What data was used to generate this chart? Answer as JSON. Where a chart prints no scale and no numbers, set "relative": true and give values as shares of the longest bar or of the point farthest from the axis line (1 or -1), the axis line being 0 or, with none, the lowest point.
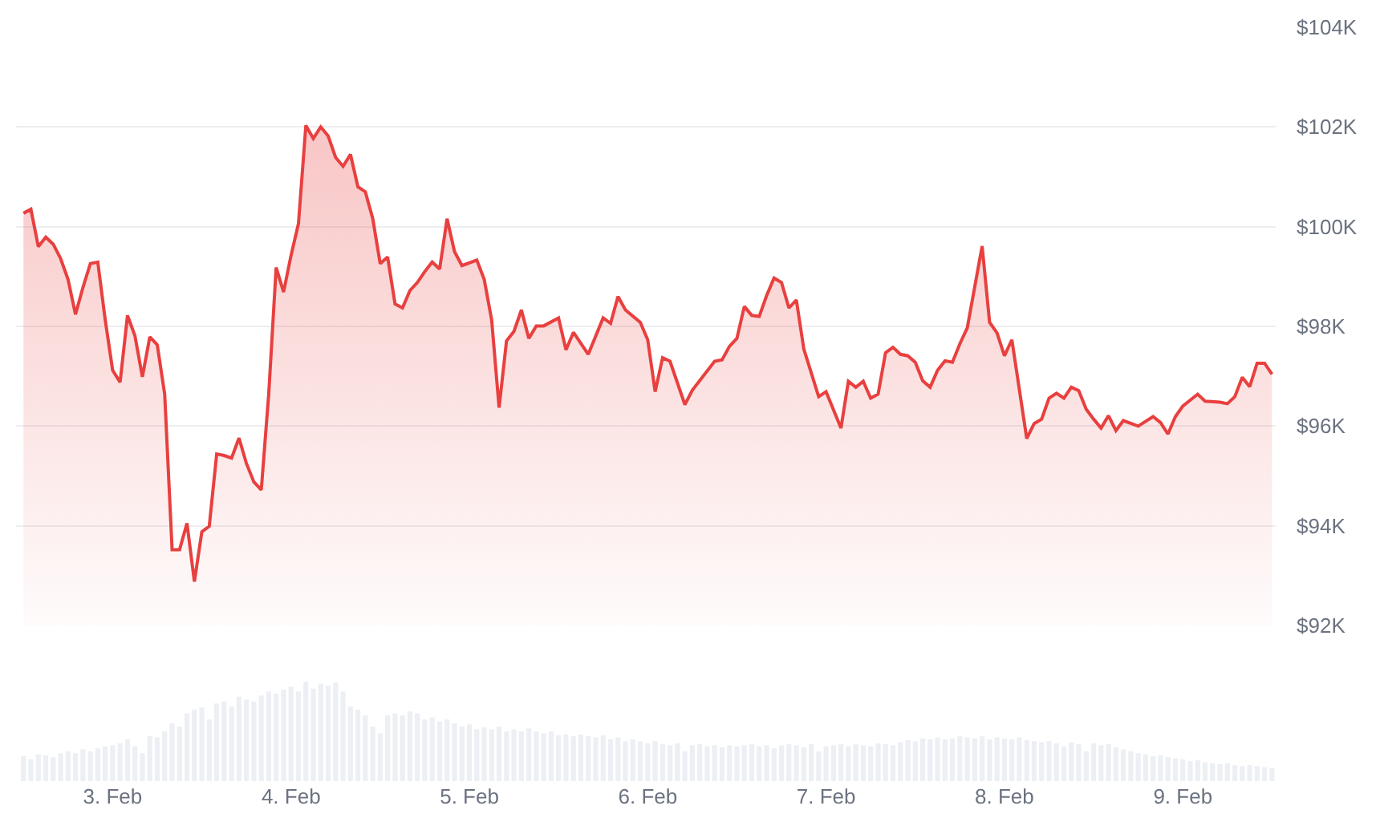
{
  "chart_data": [
    {
      "type": "area",
      "tick_labels": "y",
      "grid": "y",
      "marker": "none",
      "line_style": "solid",
      "xlim": [
        "--02-02T11:00",
        "--02-09T12:30"
      ],
      "ylim": [
        92,
        104
      ],
      "yticks": [
        {
          "value": 92,
          "label": "$92K"
        },
        {
          "value": 94,
          "label": "$94K"
        },
        {
          "value": 96,
          "label": "$96K"
        },
        {
          "value": 98,
          "label": "$98K"
        },
        {
          "value": 100,
          "label": "$100K"
        },
        {
          "value": 102,
          "label": "$102K"
        },
        {
          "value": 104,
          "label": "$104K"
        }
      ],
      "series": [
        {
          "color": "#e8403f",
          "x": [
            "--02-02T12:00",
            "--02-02T13:00",
            "--02-02T14:00",
            "--02-02T15:00",
            "--02-02T16:00",
            "--02-02T17:00",
            "--02-02T18:00",
            "--02-02T19:00",
            "--02-02T20:00",
            "--02-02T21:00",
            "--02-02T22:00",
            "--02-02T23:00",
            "--02-03T00:00",
            "--02-03T01:00",
            "--02-03T02:00",
            "--02-03T03:00",
            "--02-03T04:00",
            "--02-03T05:00",
            "--02-03T06:00",
            "--02-03T07:00",
            "--02-03T08:00",
            "--02-03T09:00",
            "--02-03T10:00",
            "--02-03T11:00",
            "--02-03T12:00",
            "--02-03T13:00",
            "--02-03T14:00",
            "--02-03T15:00",
            "--02-03T16:00",
            "--02-03T17:00",
            "--02-03T18:00",
            "--02-03T19:00",
            "--02-03T20:00",
            "--02-03T21:00",
            "--02-03T22:00",
            "--02-03T23:00",
            "--02-04T00:00",
            "--02-04T01:00",
            "--02-04T02:00",
            "--02-04T03:00",
            "--02-04T04:00",
            "--02-04T05:00",
            "--02-04T06:00",
            "--02-04T07:00",
            "--02-04T08:00",
            "--02-04T09:00",
            "--02-04T10:00",
            "--02-04T11:00",
            "--02-04T12:00",
            "--02-04T13:00",
            "--02-04T14:00",
            "--02-04T15:00",
            "--02-04T16:00",
            "--02-04T17:00",
            "--02-04T18:00",
            "--02-04T19:00",
            "--02-04T20:00",
            "--02-04T21:00",
            "--02-04T22:00",
            "--02-04T23:00",
            "--02-05T01:00",
            "--02-05T02:00",
            "--02-05T03:00",
            "--02-05T04:00",
            "--02-05T05:00",
            "--02-05T06:00",
            "--02-05T07:00",
            "--02-05T08:00",
            "--02-05T09:00",
            "--02-05T10:00",
            "--02-05T12:00",
            "--02-05T13:00",
            "--02-05T14:00",
            "--02-05T16:00",
            "--02-05T18:00",
            "--02-05T19:00",
            "--02-05T20:00",
            "--02-05T21:00",
            "--02-05T23:00",
            "--02-06T00:00",
            "--02-06T01:00",
            "--02-06T02:00",
            "--02-06T03:00",
            "--02-06T05:00",
            "--02-06T06:00",
            "--02-06T09:00",
            "--02-06T10:00",
            "--02-06T11:00",
            "--02-06T12:00",
            "--02-06T13:00",
            "--02-06T14:00",
            "--02-06T15:00",
            "--02-06T16:00",
            "--02-06T17:00",
            "--02-06T18:00",
            "--02-06T19:00",
            "--02-06T20:00",
            "--02-06T21:00",
            "--02-06T23:00",
            "--02-07T00:00",
            "--02-07T02:00",
            "--02-07T03:00",
            "--02-07T04:00",
            "--02-07T05:00",
            "--02-07T06:00",
            "--02-07T07:00",
            "--02-07T08:00",
            "--02-07T09:00",
            "--02-07T10:00",
            "--02-07T11:00",
            "--02-07T12:00",
            "--02-07T13:00",
            "--02-07T14:00",
            "--02-07T15:00",
            "--02-07T16:00",
            "--02-07T17:00",
            "--02-07T18:00",
            "--02-07T19:00",
            "--02-07T21:00",
            "--02-07T22:00",
            "--02-07T23:00",
            "--02-08T00:00",
            "--02-08T01:00",
            "--02-08T03:00",
            "--02-08T04:00",
            "--02-08T05:00",
            "--02-08T06:00",
            "--02-08T07:00",
            "--02-08T08:00",
            "--02-08T09:00",
            "--02-08T10:00",
            "--02-08T11:00",
            "--02-08T12:00",
            "--02-08T13:00",
            "--02-08T14:00",
            "--02-08T15:00",
            "--02-08T16:00",
            "--02-08T18:00",
            "--02-08T20:00",
            "--02-08T21:00",
            "--02-08T22:00",
            "--02-08T23:00",
            "--02-09T00:00",
            "--02-09T02:00",
            "--02-09T03:00",
            "--02-09T05:00",
            "--02-09T06:00",
            "--02-09T07:00",
            "--02-09T08:00",
            "--02-09T09:00",
            "--02-09T10:00",
            "--02-09T11:00",
            "--02-09T12:00"
          ],
          "values": [
            100.27,
            100.35,
            99.6,
            99.79,
            99.65,
            99.36,
            98.94,
            98.24,
            98.78,
            99.26,
            99.29,
            98.13,
            97.12,
            96.88,
            98.22,
            97.81,
            96.99,
            97.79,
            97.63,
            96.64,
            93.52,
            93.52,
            94.05,
            92.88,
            93.88,
            93.99,
            95.44,
            95.41,
            95.36,
            95.76,
            95.25,
            94.88,
            94.72,
            96.64,
            99.18,
            98.69,
            99.42,
            100.06,
            102.03,
            101.77,
            102.0,
            101.82,
            101.39,
            101.21,
            101.45,
            100.8,
            100.7,
            100.16,
            99.26,
            99.39,
            98.45,
            98.37,
            98.72,
            98.88,
            99.1,
            99.29,
            99.15,
            100.16,
            99.5,
            99.22,
            99.33,
            98.94,
            98.13,
            96.37,
            97.71,
            97.9,
            98.33,
            97.76,
            98.01,
            98.01,
            98.17,
            97.53,
            97.88,
            97.44,
            98.17,
            98.06,
            98.6,
            98.33,
            98.08,
            97.73,
            96.69,
            97.37,
            97.3,
            96.43,
            96.72,
            97.3,
            97.33,
            97.6,
            97.76,
            98.4,
            98.22,
            98.2,
            98.62,
            98.97,
            98.88,
            98.37,
            98.53,
            97.55,
            96.59,
            96.69,
            95.96,
            96.9,
            96.78,
            96.9,
            96.56,
            96.64,
            97.47,
            97.58,
            97.44,
            97.41,
            97.28,
            96.91,
            96.78,
            97.12,
            97.31,
            97.28,
            97.65,
            97.97,
            99.61,
            98.08,
            97.87,
            97.41,
            97.73,
            95.75,
            96.05,
            96.14,
            96.56,
            96.66,
            96.56,
            96.78,
            96.71,
            96.34,
            96.14,
            95.96,
            96.21,
            95.91,
            96.11,
            96.0,
            96.19,
            96.07,
            95.84,
            96.19,
            96.4,
            96.64,
            96.5,
            96.48,
            96.45,
            96.59,
            96.98,
            96.79,
            97.26,
            97.26,
            97.04
          ]
        }
      ]
    },
    {
      "type": "bar",
      "relative": true,
      "tick_labels": "x",
      "grid": false,
      "xlim": [
        "--02-02T11:00",
        "--02-09T12:30"
      ],
      "xticks": [
        {
          "value": "--02-03",
          "label": "3. Feb"
        },
        {
          "value": "--02-04",
          "label": "4. Feb"
        },
        {
          "value": "--02-05",
          "label": "5. Feb"
        },
        {
          "value": "--02-06",
          "label": "6. Feb"
        },
        {
          "value": "--02-07",
          "label": "7. Feb"
        },
        {
          "value": "--02-08",
          "label": "8. Feb"
        },
        {
          "value": "--02-09",
          "label": "9. Feb"
        }
      ],
      "series": [
        {
          "color": "#eceff3",
          "x": [
            "--02-02T12:00",
            "--02-02T13:00",
            "--02-02T14:00",
            "--02-02T15:00",
            "--02-02T16:00",
            "--02-02T17:00",
            "--02-02T18:00",
            "--02-02T19:00",
            "--02-02T20:00",
            "--02-02T21:00",
            "--02-02T22:00",
            "--02-02T23:00",
            "--02-03T00:00",
            "--02-03T01:00",
            "--02-03T02:00",
            "--02-03T03:00",
            "--02-03T04:00",
            "--02-03T05:00",
            "--02-03T06:00",
            "--02-03T07:00",
            "--02-03T08:00",
            "--02-03T09:00",
            "--02-03T10:00",
            "--02-03T11:00",
            "--02-03T12:00",
            "--02-03T13:00",
            "--02-03T14:00",
            "--02-03T15:00",
            "--02-03T16:00",
            "--02-03T17:00",
            "--02-03T18:00",
            "--02-03T19:00",
            "--02-03T20:00",
            "--02-03T21:00",
            "--02-03T22:00",
            "--02-03T23:00",
            "--02-04T00:00",
            "--02-04T01:00",
            "--02-04T02:00",
            "--02-04T03:00",
            "--02-04T04:00",
            "--02-04T05:00",
            "--02-04T06:00",
            "--02-04T07:00",
            "--02-04T08:00",
            "--02-04T09:00",
            "--02-04T10:00",
            "--02-04T11:00",
            "--02-04T12:00",
            "--02-04T13:00",
            "--02-04T14:00",
            "--02-04T15:00",
            "--02-04T16:00",
            "--02-04T17:00",
            "--02-04T18:00",
            "--02-04T19:00",
            "--02-04T20:00",
            "--02-04T21:00",
            "--02-04T22:00",
            "--02-04T23:00",
            "--02-05T00:00",
            "--02-05T01:00",
            "--02-05T02:00",
            "--02-05T03:00",
            "--02-05T04:00",
            "--02-05T05:00",
            "--02-05T06:00",
            "--02-05T07:00",
            "--02-05T08:00",
            "--02-05T09:00",
            "--02-05T10:00",
            "--02-05T11:00",
            "--02-05T12:00",
            "--02-05T13:00",
            "--02-05T14:00",
            "--02-05T15:00",
            "--02-05T16:00",
            "--02-05T17:00",
            "--02-05T18:00",
            "--02-05T19:00",
            "--02-05T20:00",
            "--02-05T21:00",
            "--02-05T22:00",
            "--02-05T23:00",
            "--02-06T00:00",
            "--02-06T01:00",
            "--02-06T02:00",
            "--02-06T03:00",
            "--02-06T04:00",
            "--02-06T05:00",
            "--02-06T06:00",
            "--02-06T07:00",
            "--02-06T08:00",
            "--02-06T09:00",
            "--02-06T10:00",
            "--02-06T11:00",
            "--02-06T12:00",
            "--02-06T13:00",
            "--02-06T14:00",
            "--02-06T15:00",
            "--02-06T16:00",
            "--02-06T17:00",
            "--02-06T18:00",
            "--02-06T19:00",
            "--02-06T20:00",
            "--02-06T21:00",
            "--02-06T22:00",
            "--02-06T23:00",
            "--02-07T00:00",
            "--02-07T01:00",
            "--02-07T02:00",
            "--02-07T03:00",
            "--02-07T04:00",
            "--02-07T05:00",
            "--02-07T06:00",
            "--02-07T07:00",
            "--02-07T08:00",
            "--02-07T09:00",
            "--02-07T10:00",
            "--02-07T11:00",
            "--02-07T12:00",
            "--02-07T13:00",
            "--02-07T14:00",
            "--02-07T15:00",
            "--02-07T16:00",
            "--02-07T17:00",
            "--02-07T18:00",
            "--02-07T19:00",
            "--02-07T20:00",
            "--02-07T21:00",
            "--02-07T22:00",
            "--02-07T23:00",
            "--02-08T00:00",
            "--02-08T01:00",
            "--02-08T02:00",
            "--02-08T03:00",
            "--02-08T04:00",
            "--02-08T05:00",
            "--02-08T06:00",
            "--02-08T07:00",
            "--02-08T08:00",
            "--02-08T09:00",
            "--02-08T10:00",
            "--02-08T11:00",
            "--02-08T12:00",
            "--02-08T13:00",
            "--02-08T14:00",
            "--02-08T15:00",
            "--02-08T16:00",
            "--02-08T17:00",
            "--02-08T18:00",
            "--02-08T19:00",
            "--02-08T20:00",
            "--02-08T21:00",
            "--02-08T22:00",
            "--02-08T23:00",
            "--02-09T00:00",
            "--02-09T01:00",
            "--02-09T02:00",
            "--02-09T03:00",
            "--02-09T04:00",
            "--02-09T05:00",
            "--02-09T06:00",
            "--02-09T07:00",
            "--02-09T08:00",
            "--02-09T09:00",
            "--02-09T10:00",
            "--02-09T11:00",
            "--02-09T12:00"
          ],
          "values": [
            0.25,
            0.22,
            0.27,
            0.26,
            0.24,
            0.28,
            0.3,
            0.28,
            0.32,
            0.3,
            0.33,
            0.35,
            0.36,
            0.38,
            0.42,
            0.35,
            0.28,
            0.45,
            0.44,
            0.5,
            0.58,
            0.55,
            0.68,
            0.72,
            0.74,
            0.62,
            0.78,
            0.8,
            0.75,
            0.85,
            0.82,
            0.8,
            0.86,
            0.9,
            0.88,
            0.92,
            0.95,
            0.9,
            1.0,
            0.93,
            0.98,
            0.96,
            0.99,
            0.9,
            0.75,
            0.72,
            0.66,
            0.55,
            0.48,
            0.66,
            0.68,
            0.66,
            0.7,
            0.68,
            0.62,
            0.64,
            0.6,
            0.62,
            0.58,
            0.55,
            0.57,
            0.52,
            0.54,
            0.52,
            0.55,
            0.5,
            0.52,
            0.5,
            0.53,
            0.5,
            0.48,
            0.5,
            0.46,
            0.47,
            0.45,
            0.47,
            0.45,
            0.44,
            0.46,
            0.42,
            0.44,
            0.4,
            0.42,
            0.4,
            0.38,
            0.4,
            0.37,
            0.36,
            0.38,
            0.3,
            0.36,
            0.37,
            0.35,
            0.36,
            0.34,
            0.36,
            0.35,
            0.36,
            0.37,
            0.35,
            0.36,
            0.33,
            0.36,
            0.37,
            0.36,
            0.34,
            0.37,
            0.3,
            0.35,
            0.36,
            0.37,
            0.35,
            0.37,
            0.36,
            0.35,
            0.38,
            0.37,
            0.36,
            0.39,
            0.41,
            0.4,
            0.43,
            0.42,
            0.44,
            0.42,
            0.43,
            0.45,
            0.44,
            0.43,
            0.45,
            0.42,
            0.44,
            0.43,
            0.42,
            0.44,
            0.41,
            0.4,
            0.39,
            0.4,
            0.38,
            0.35,
            0.39,
            0.37,
            0.3,
            0.38,
            0.36,
            0.37,
            0.34,
            0.32,
            0.3,
            0.28,
            0.27,
            0.25,
            0.26,
            0.24,
            0.23,
            0.22,
            0.2,
            0.21,
            0.19,
            0.18,
            0.17,
            0.18,
            0.16,
            0.15,
            0.16,
            0.15,
            0.14,
            0.13
          ]
        }
      ]
    }
  ]
}
